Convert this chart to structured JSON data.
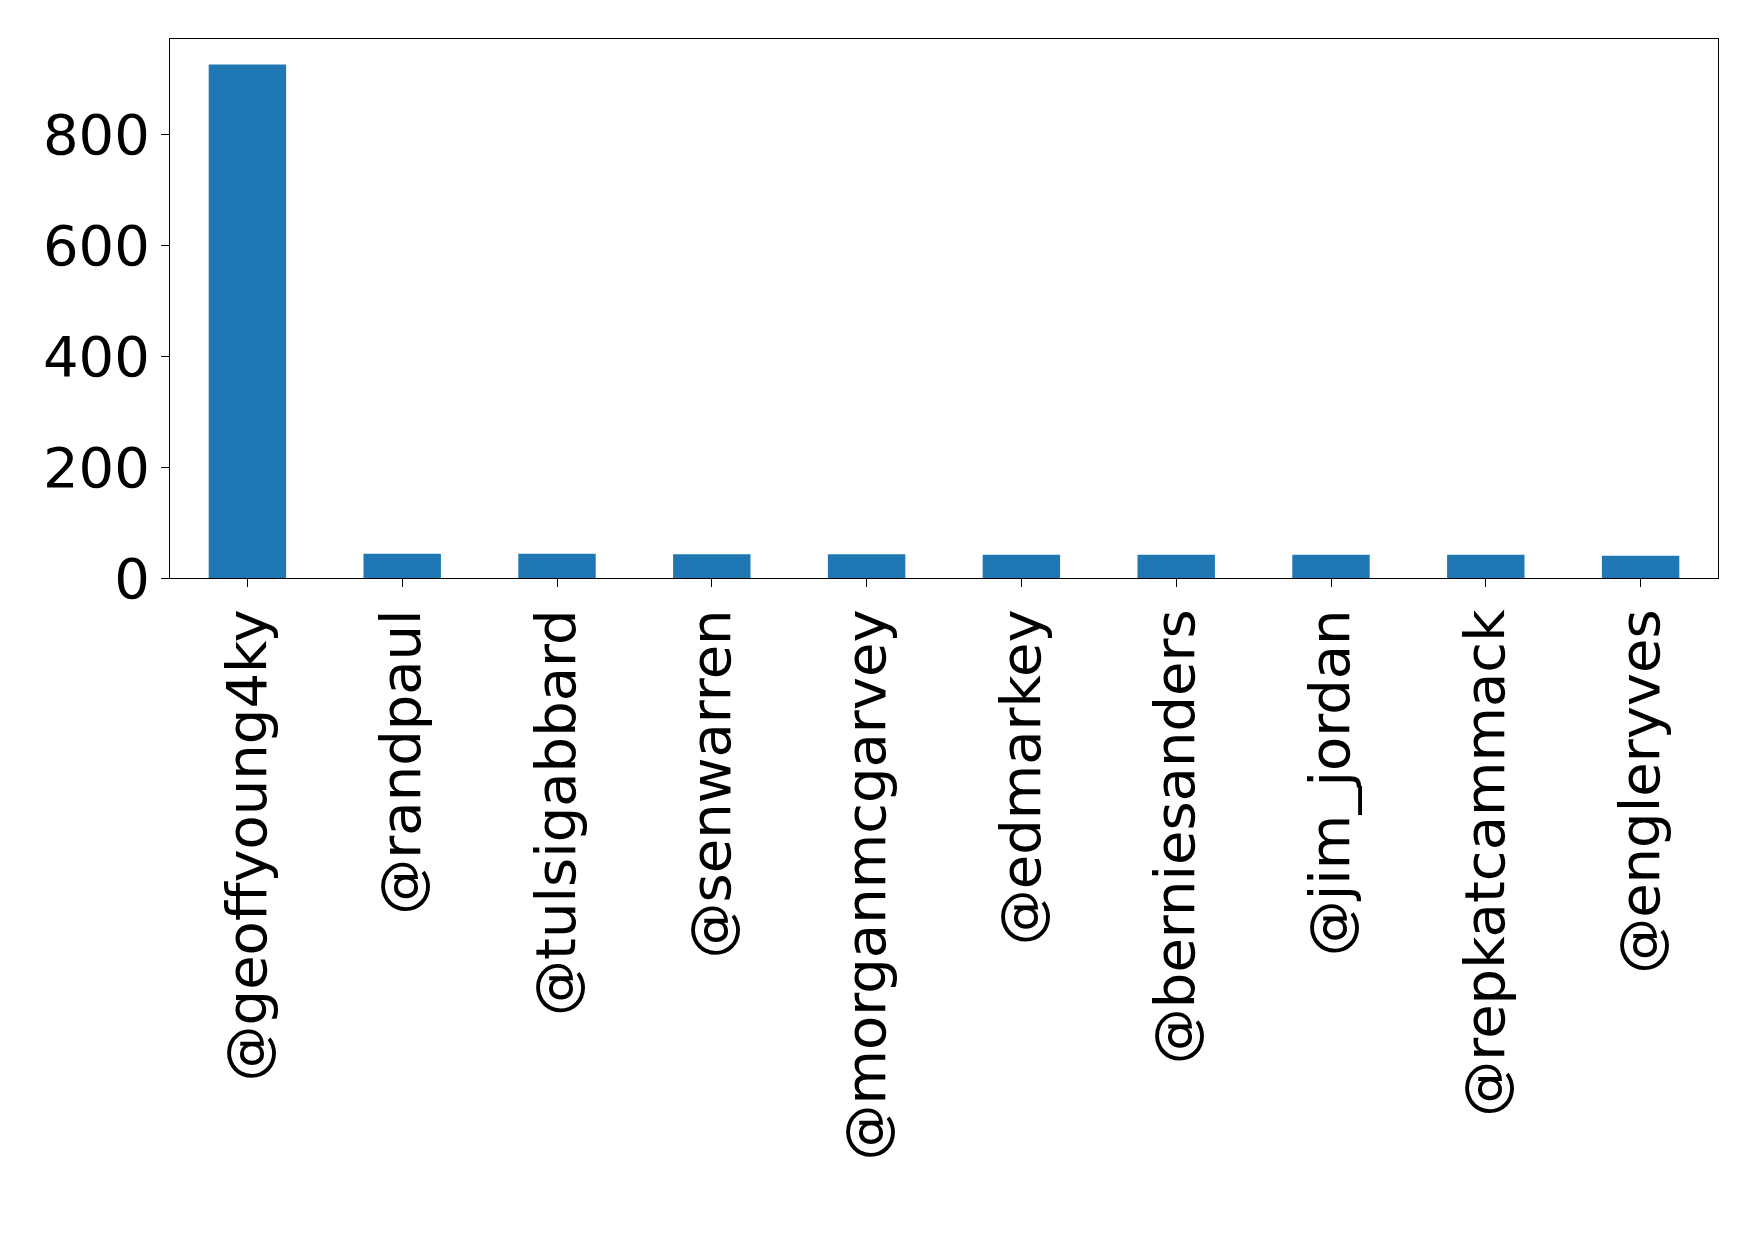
{
  "chart_data": {
    "type": "bar",
    "categories": [
      "@geoffyoung4ky",
      "@randpaul",
      "@tulsigabbard",
      "@senwarren",
      "@morganmcgarvey",
      "@edmarkey",
      "@berniesanders",
      "@jim_jordan",
      "@repkatcammack",
      "@engleryves"
    ],
    "values": [
      927,
      44,
      44,
      43,
      43,
      42,
      42,
      42,
      42,
      40
    ],
    "color": "#1f77b4",
    "ylim": [
      0,
      973
    ],
    "yticks": [
      0,
      200,
      400,
      600,
      800
    ]
  }
}
